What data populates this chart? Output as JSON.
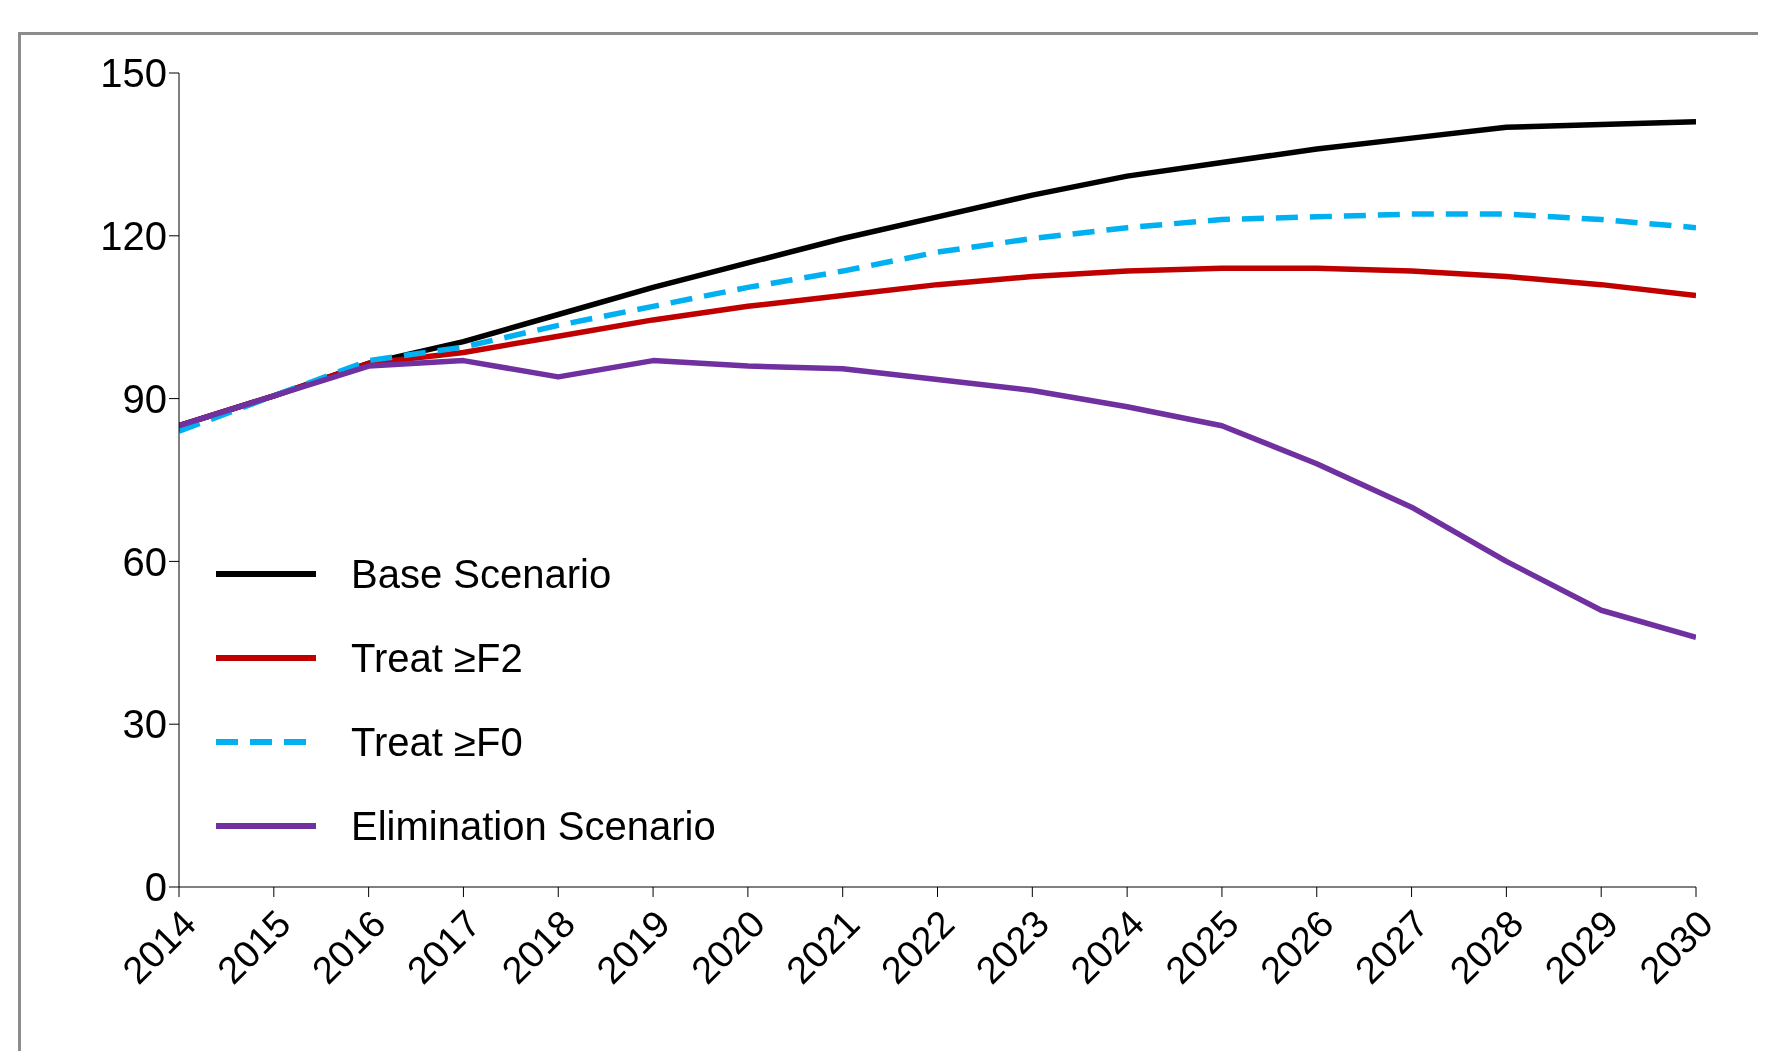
{
  "chart_data": {
    "type": "line",
    "categories": [
      "2014",
      "2015",
      "2016",
      "2017",
      "2018",
      "2019",
      "2020",
      "2021",
      "2022",
      "2023",
      "2024",
      "2025",
      "2026",
      "2027",
      "2028",
      "2029",
      "2030"
    ],
    "series": [
      {
        "name": "Base Scenario",
        "color": "#000000",
        "line_style": "solid",
        "values": [
          85,
          90.5,
          96.5,
          100.5,
          105.5,
          110.5,
          115,
          119.5,
          123.5,
          127.5,
          131,
          133.5,
          136,
          138,
          140,
          140.5,
          141
        ]
      },
      {
        "name": "Treat ≥F2",
        "color": "#c00000",
        "line_style": "solid",
        "values": [
          85,
          90.5,
          96.5,
          98.5,
          101.5,
          104.5,
          107,
          109,
          111,
          112.5,
          113.5,
          114,
          114,
          113.5,
          112.5,
          111,
          109
        ]
      },
      {
        "name": "Treat ≥F0",
        "color": "#00b0f0",
        "line_style": "dashed",
        "values": [
          84,
          90.5,
          97,
          99.5,
          103.5,
          107,
          110.5,
          113.5,
          117,
          119.5,
          121.5,
          123,
          123.5,
          124,
          124,
          123,
          121.5
        ]
      },
      {
        "name": "Elimination Scenario",
        "color": "#7030a0",
        "line_style": "solid",
        "values": [
          85,
          90.5,
          96,
          97,
          94,
          97,
          96,
          95.5,
          93.5,
          91.5,
          88.5,
          85,
          78,
          70,
          60,
          51,
          46
        ]
      }
    ],
    "ylim": [
      0,
      150
    ],
    "yticks": [
      0,
      30,
      60,
      90,
      120,
      150
    ],
    "grid": false,
    "legend": "bottom left",
    "marker": "none"
  }
}
